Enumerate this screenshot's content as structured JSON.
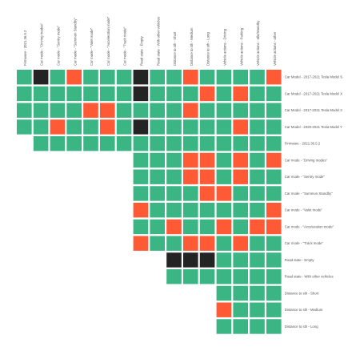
{
  "chart_data": {
    "type": "heatmap",
    "columns": [
      "Firmware - 2021.36.5.2",
      "Car mode - \"Driving modes\"",
      "Car mode - \"Sentry mode\"",
      "Car mode - \"Summon Standby\"",
      "Car mode - \"Valet mode\"",
      "Car mode - \"Acceleration mode\"",
      "Car mode - \"Track mode\"",
      "Road state - Empty",
      "Road state - With other vehicles",
      "Distance to sth - Short",
      "Distance to sth - Medium",
      "Distance to sth - Long",
      "Vehicle actions - Driving",
      "Vehicle actions - Parking",
      "Vehicle actions - Idle/Standby",
      "Vehicle actions - other"
    ],
    "rows": [
      "Car Model - 2017-2021 Tesla Model S",
      "Car Model - 2017-2021 Tesla Model X",
      "Car Model - 2017-2021 Tesla Model 3",
      "Car Model - 2020-2021 Tesla Model Y",
      "Firmware - 2021.36.5.2",
      "Car mode - \"Driving modes\"",
      "Car mode - \"Sentry mode\"",
      "Car mode - \"Summon Standby\"",
      "Car mode - \"Valet mode\"",
      "Car mode - \"Acceleration mode\"",
      "Car mode - \"Track mode\"",
      "Road state - Empty",
      "Road state - With other vehicles",
      "Distance to sth - Short",
      "Distance to sth - Medium",
      "Distance to sth - Long"
    ],
    "row_start_column": [
      0,
      0,
      0,
      0,
      1,
      7,
      7,
      7,
      7,
      7,
      7,
      9,
      9,
      12,
      12,
      12
    ],
    "legend": [
      {
        "value": 0,
        "color": "#3cb585"
      },
      {
        "value": 1,
        "color": "#fe5a36"
      },
      {
        "value": 2,
        "color": "#242424"
      }
    ],
    "matrix": [
      [
        0,
        2,
        0,
        1,
        0,
        0,
        0,
        2,
        0,
        0,
        1,
        0,
        0,
        0,
        0,
        1
      ],
      [
        0,
        0,
        0,
        0,
        0,
        0,
        0,
        2,
        0,
        0,
        0,
        1,
        0,
        1,
        0,
        0
      ],
      [
        0,
        0,
        0,
        0,
        1,
        1,
        0,
        0,
        0,
        0,
        1,
        0,
        0,
        0,
        0,
        0
      ],
      [
        0,
        0,
        1,
        0,
        0,
        1,
        0,
        2,
        0,
        0,
        0,
        0,
        0,
        1,
        0,
        0
      ],
      [
        0,
        0,
        0,
        0,
        0,
        0,
        0,
        0,
        0,
        0,
        0,
        0,
        0,
        0,
        0
      ],
      [
        0,
        0,
        0,
        1,
        1,
        0,
        1,
        0,
        1
      ],
      [
        0,
        0,
        0,
        1,
        1,
        0,
        1,
        0,
        0
      ],
      [
        0,
        0,
        0,
        0,
        1,
        1,
        0,
        0,
        0
      ],
      [
        1,
        0,
        0,
        0,
        0,
        0,
        0,
        0,
        1
      ],
      [
        0,
        0,
        1,
        0,
        0,
        1,
        0,
        1,
        1
      ],
      [
        1,
        0,
        0,
        1,
        1,
        0,
        1,
        0,
        0
      ],
      [
        2,
        2,
        2,
        0,
        0,
        0,
        0
      ],
      [
        0,
        0,
        0,
        0,
        0,
        0,
        0
      ],
      [
        0,
        0,
        0,
        0
      ],
      [
        1,
        0,
        0,
        0
      ],
      [
        0,
        0,
        0,
        0
      ]
    ]
  }
}
